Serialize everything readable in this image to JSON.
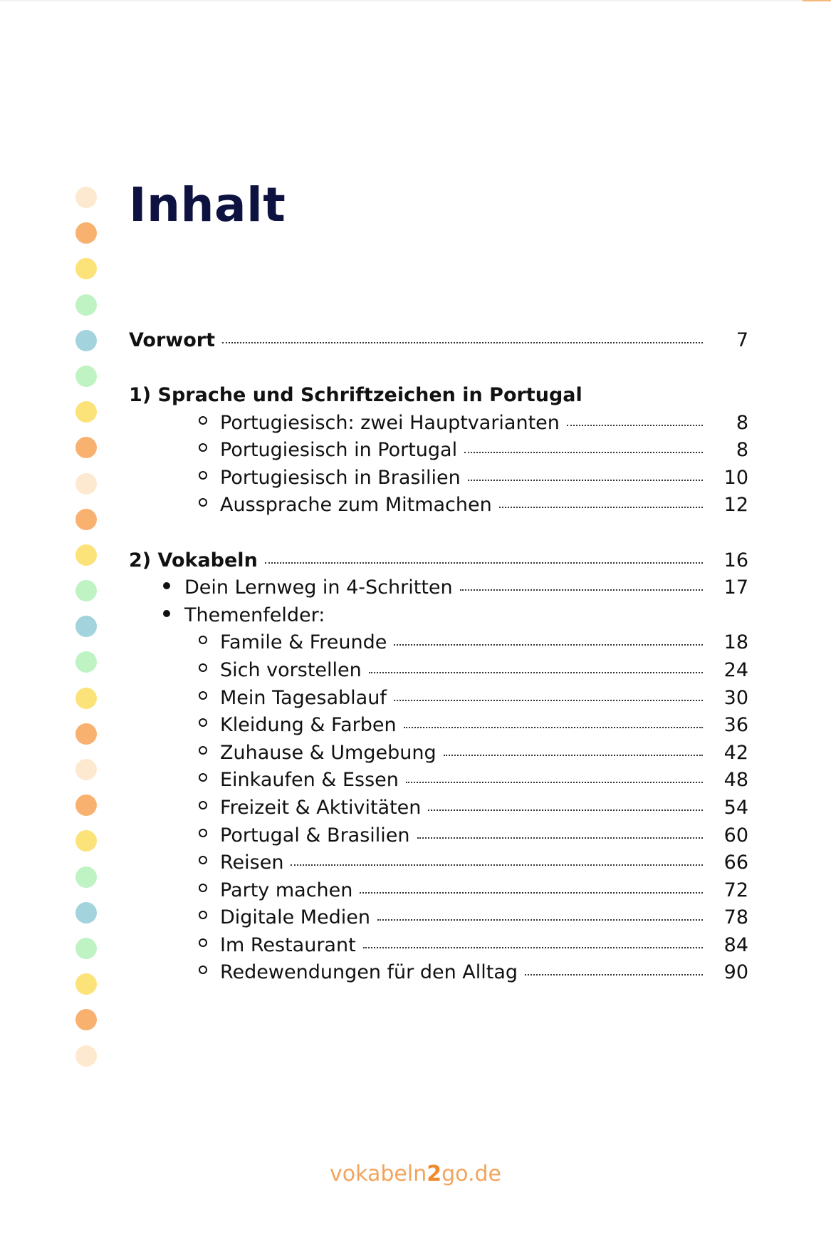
{
  "title": "Inhalt",
  "colors": {
    "peach": "#fde9d0",
    "orange": "#f9b170",
    "yellow": "#fbe37a",
    "green": "#bff3c4",
    "blue": "#a3d3dc",
    "title": "#0d1240",
    "footer": "#f3a45c"
  },
  "dots": [
    "peach",
    "orange",
    "yellow",
    "green",
    "blue",
    "green",
    "yellow",
    "orange",
    "peach",
    "orange",
    "yellow",
    "green",
    "blue",
    "green",
    "yellow",
    "orange",
    "peach",
    "orange",
    "yellow",
    "green",
    "blue",
    "green",
    "yellow",
    "orange",
    "peach"
  ],
  "toc": {
    "vorwort": {
      "label": "Vorwort",
      "page": "7"
    },
    "section1": {
      "label": "1) Sprache und Schriftzeichen in Portugal",
      "items": [
        {
          "label": "Portugiesisch: zwei Hauptvarianten",
          "page": "8"
        },
        {
          "label": "Portugiesisch in Portugal",
          "page": "8"
        },
        {
          "label": "Portugiesisch in Brasilien",
          "page": "10"
        },
        {
          "label": "Aussprache zum Mitmachen",
          "page": "12"
        }
      ]
    },
    "section2": {
      "label": "2) Vokabeln",
      "page": "16",
      "lernweg": {
        "label": "Dein Lernweg in 4-Schritten",
        "page": "17"
      },
      "themen_label": "Themenfelder:",
      "themen": [
        {
          "label": "Famile & Freunde",
          "page": "18"
        },
        {
          "label": "Sich vorstellen",
          "page": "24"
        },
        {
          "label": "Mein Tagesablauf",
          "page": "30"
        },
        {
          "label": "Kleidung & Farben",
          "page": "36"
        },
        {
          "label": "Zuhause & Umgebung",
          "page": "42"
        },
        {
          "label": "Einkaufen & Essen",
          "page": "48"
        },
        {
          "label": "Freizeit & Aktivitäten",
          "page": "54"
        },
        {
          "label": "Portugal & Brasilien",
          "page": "60"
        },
        {
          "label": "Reisen",
          "page": "66"
        },
        {
          "label": "Party machen",
          "page": "72"
        },
        {
          "label": "Digitale Medien",
          "page": "78"
        },
        {
          "label": "Im Restaurant",
          "page": "84"
        },
        {
          "label": "Redewendungen für den Alltag",
          "page": "90"
        }
      ]
    }
  },
  "footer": {
    "part1": "vokabeln",
    "part2": "2",
    "part3": "go.de"
  }
}
